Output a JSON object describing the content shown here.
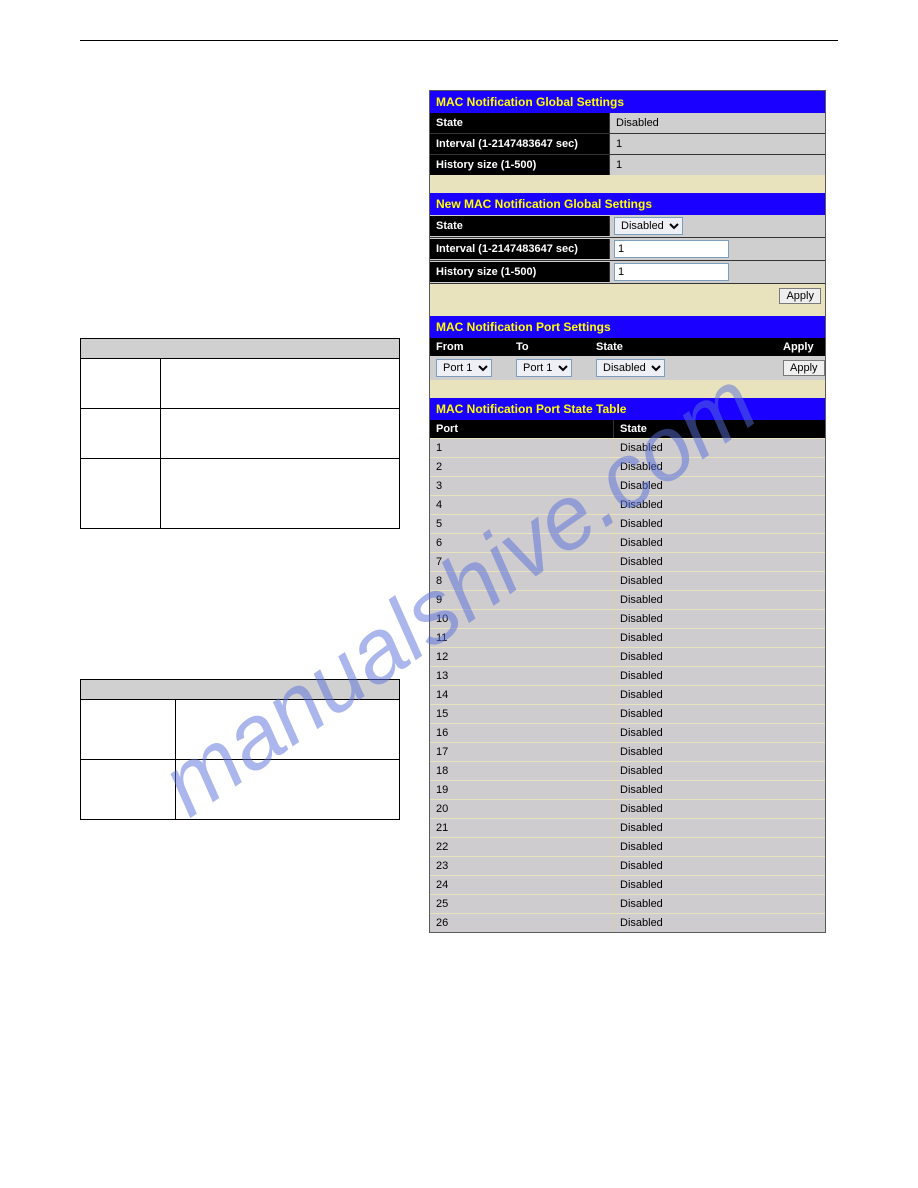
{
  "watermark_text": "manualshive.com",
  "global_settings": {
    "title": "MAC Notification Global Settings",
    "rows": [
      {
        "label": "State",
        "value": "Disabled"
      },
      {
        "label": "Interval (1-2147483647 sec)",
        "value": "1"
      },
      {
        "label": "History size (1-500)",
        "value": "1"
      }
    ]
  },
  "new_global_settings": {
    "title": "New MAC Notification Global Settings",
    "state_label": "State",
    "state_value": "Disabled",
    "interval_label": "Interval (1-2147483647 sec)",
    "interval_value": "1",
    "history_label": "History size (1-500)",
    "history_value": "1",
    "apply_label": "Apply"
  },
  "port_settings": {
    "title": "MAC Notification Port Settings",
    "from_label": "From",
    "to_label": "To",
    "state_label": "State",
    "apply_label": "Apply",
    "from_value": "Port 1",
    "to_value": "Port 1",
    "state_value": "Disabled",
    "apply_btn": "Apply"
  },
  "state_table": {
    "title": "MAC Notification Port State Table",
    "port_header": "Port",
    "state_header": "State",
    "rows": [
      {
        "port": "1",
        "state": "Disabled"
      },
      {
        "port": "2",
        "state": "Disabled"
      },
      {
        "port": "3",
        "state": "Disabled"
      },
      {
        "port": "4",
        "state": "Disabled"
      },
      {
        "port": "5",
        "state": "Disabled"
      },
      {
        "port": "6",
        "state": "Disabled"
      },
      {
        "port": "7",
        "state": "Disabled"
      },
      {
        "port": "8",
        "state": "Disabled"
      },
      {
        "port": "9",
        "state": "Disabled"
      },
      {
        "port": "10",
        "state": "Disabled"
      },
      {
        "port": "11",
        "state": "Disabled"
      },
      {
        "port": "12",
        "state": "Disabled"
      },
      {
        "port": "13",
        "state": "Disabled"
      },
      {
        "port": "14",
        "state": "Disabled"
      },
      {
        "port": "15",
        "state": "Disabled"
      },
      {
        "port": "16",
        "state": "Disabled"
      },
      {
        "port": "17",
        "state": "Disabled"
      },
      {
        "port": "18",
        "state": "Disabled"
      },
      {
        "port": "19",
        "state": "Disabled"
      },
      {
        "port": "20",
        "state": "Disabled"
      },
      {
        "port": "21",
        "state": "Disabled"
      },
      {
        "port": "22",
        "state": "Disabled"
      },
      {
        "port": "23",
        "state": "Disabled"
      },
      {
        "port": "24",
        "state": "Disabled"
      },
      {
        "port": "25",
        "state": "Disabled"
      },
      {
        "port": "26",
        "state": "Disabled"
      }
    ]
  },
  "colors": {
    "header_bg": "#1a00ff",
    "header_fg": "#ffff00",
    "label_bg": "#000000",
    "label_fg": "#ffffff",
    "value_bg": "#cfcfcf",
    "band_bg": "#e9e3bd",
    "row_bg": "#ceccce"
  }
}
